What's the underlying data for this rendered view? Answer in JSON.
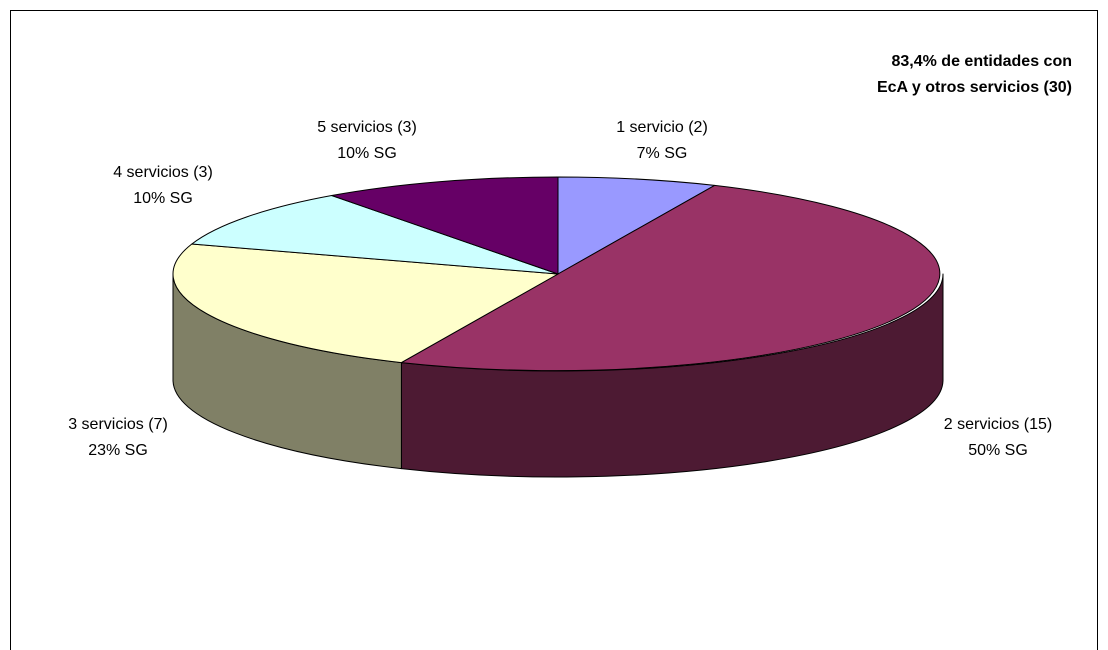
{
  "title": {
    "line1": "83,4% de  entidades con",
    "line2": "EcA y otros servicios (30)"
  },
  "chart_data": {
    "type": "pie",
    "style": "3d",
    "total": 30,
    "title": "83,4% de  entidades con EcA y otros servicios (30)",
    "slices": [
      {
        "name": "1 servicio (2)",
        "count": 2,
        "percent_label": "7% SG",
        "color": "#9999ff",
        "side_color": "#5c5c99"
      },
      {
        "name": "2 servicios (15)",
        "count": 15,
        "percent_label": "50% SG",
        "color": "#993366",
        "side_color": "#4d1a33"
      },
      {
        "name": "3 servicios (7)",
        "count": 7,
        "percent_label": "23% SG",
        "color": "#ffffcc",
        "side_color": "#808066"
      },
      {
        "name": "4 servicios (3)",
        "count": 3,
        "percent_label": "10% SG",
        "color": "#ccffff",
        "side_color": "#668080"
      },
      {
        "name": "5 servicios (3)",
        "count": 3,
        "percent_label": "10% SG",
        "color": "#660066",
        "side_color": "#330033"
      }
    ]
  }
}
